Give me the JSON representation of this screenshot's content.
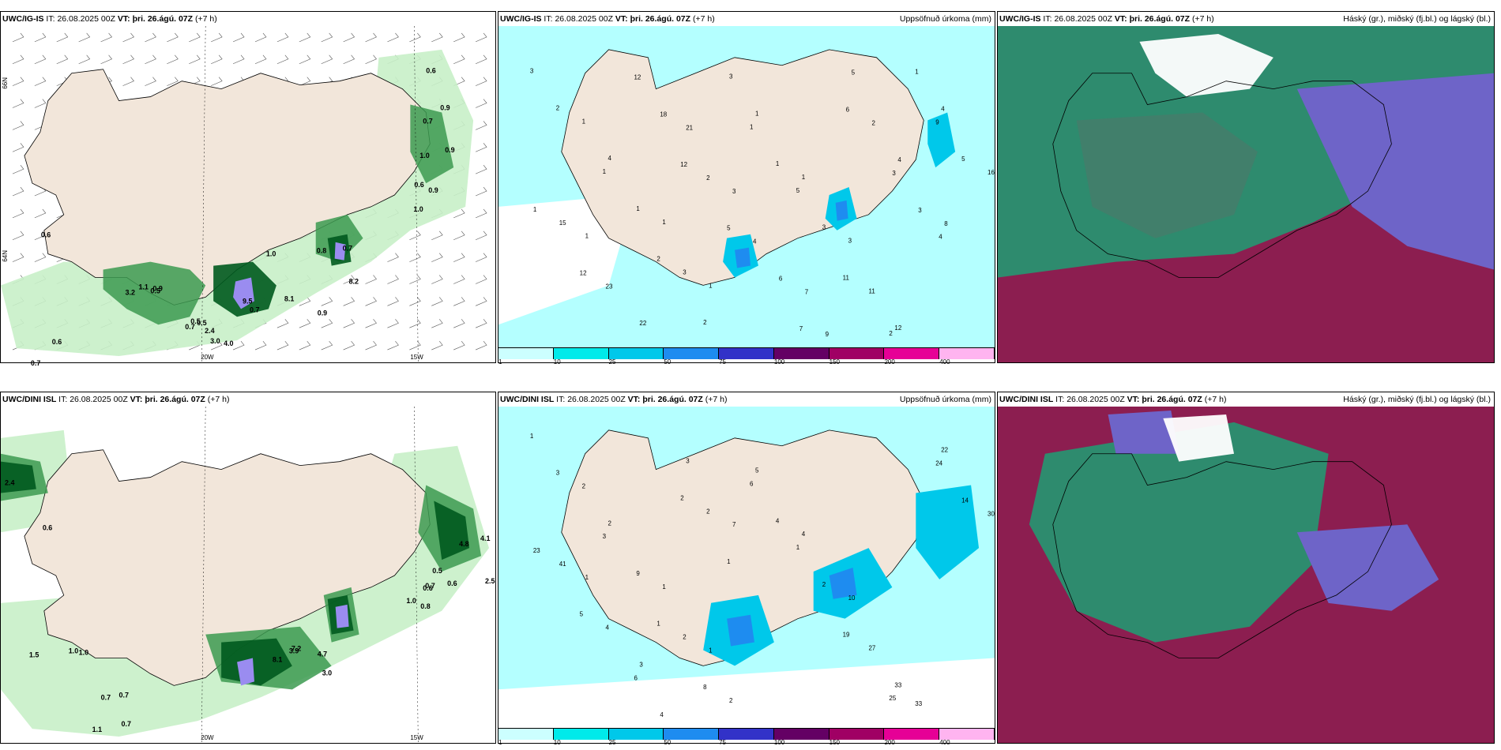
{
  "rows": [
    {
      "model": "UWC/IG-IS",
      "it_label": "IT:",
      "it_value": "26.08.2025 00Z",
      "vt_label": "VT:",
      "vt_value": "þri. 26.ágú. 07Z",
      "lead": "(+7 h)"
    },
    {
      "model": "UWC/DINI ISL",
      "it_label": "IT:",
      "it_value": "26.08.2025 00Z",
      "vt_label": "VT:",
      "vt_value": "þri. 26.ágú. 07Z",
      "lead": "(+7 h)"
    }
  ],
  "precip_title": "Uppsöfnuð úrkoma (mm)",
  "cloud_title": "Háský (gr.), miðský (fj.bl.) og lágský (bl.)",
  "colorbar": {
    "ticks": [
      "1",
      "10",
      "25",
      "50",
      "75",
      "100",
      "150",
      "200",
      "400"
    ],
    "colors": [
      "#ccffff",
      "#00eaea",
      "#00c8ea",
      "#1e8cf0",
      "#3232c8",
      "#640064",
      "#a00064",
      "#e60096",
      "#ffb4f0"
    ]
  },
  "lon_labels": [
    "20W",
    "15W"
  ],
  "lat_labels": [
    "66N",
    "64N"
  ],
  "colors": {
    "land": "#f2e6da",
    "sea_precip": "#b4ffff",
    "green_light": "#c8f0c8",
    "green_mid": "#3c9a50",
    "green_dark": "#005a1e",
    "purple": "#9a8cf0",
    "cloud_high": "#2e8b6e",
    "cloud_mid": "#6e64c8",
    "cloud_low": "#8c1e50"
  },
  "top_left_values": [
    "0.6",
    "0.9",
    "0.7",
    "0.9",
    "1.0",
    "0.6",
    "0.9",
    "0.8",
    "0.7",
    "1.0",
    "0.5",
    "0.9",
    "0.7",
    "0.5",
    "8.2",
    "1.1",
    "3.2",
    "0.5",
    "0.7",
    "9.5",
    "8.1",
    "4.0",
    "3.0",
    "2.4",
    "0.9",
    "0.6",
    "0.7",
    "0.6",
    "1.0"
  ],
  "bottom_left_values": [
    "2.4",
    "0.6",
    "1.0",
    "4.1",
    "4.8",
    "2.5",
    "0.5",
    "0.6",
    "0.7",
    "0.6",
    "1.0",
    "0.8",
    "3.9",
    "7.2",
    "4.7",
    "8.1",
    "3.0",
    "1.5",
    "1.0",
    "0.7",
    "0.7",
    "0.7",
    "1.1"
  ],
  "top_precip_values": [
    "3",
    "2",
    "1",
    "4",
    "1",
    "1",
    "1",
    "2",
    "3",
    "1",
    "2",
    "3",
    "1",
    "1",
    "1",
    "1",
    "5",
    "3",
    "3",
    "11",
    "11",
    "12",
    "2",
    "1",
    "4",
    "9",
    "5",
    "16",
    "1",
    "15",
    "1",
    "12",
    "23",
    "22",
    "12",
    "18",
    "21",
    "12",
    "2",
    "3",
    "5",
    "4",
    "6",
    "7",
    "7",
    "9",
    "5",
    "6",
    "2",
    "4",
    "3",
    "3",
    "8",
    "4"
  ],
  "bottom_precip_values": [
    "1",
    "3",
    "2",
    "2",
    "3",
    "9",
    "1",
    "1",
    "2",
    "1",
    "8",
    "2",
    "5",
    "6",
    "4",
    "4",
    "1",
    "2",
    "10",
    "19",
    "27",
    "33",
    "25",
    "33",
    "22",
    "24",
    "14",
    "30",
    "23",
    "41",
    "1",
    "5",
    "4",
    "3",
    "6",
    "4",
    "3",
    "2",
    "2",
    "7",
    "1"
  ]
}
